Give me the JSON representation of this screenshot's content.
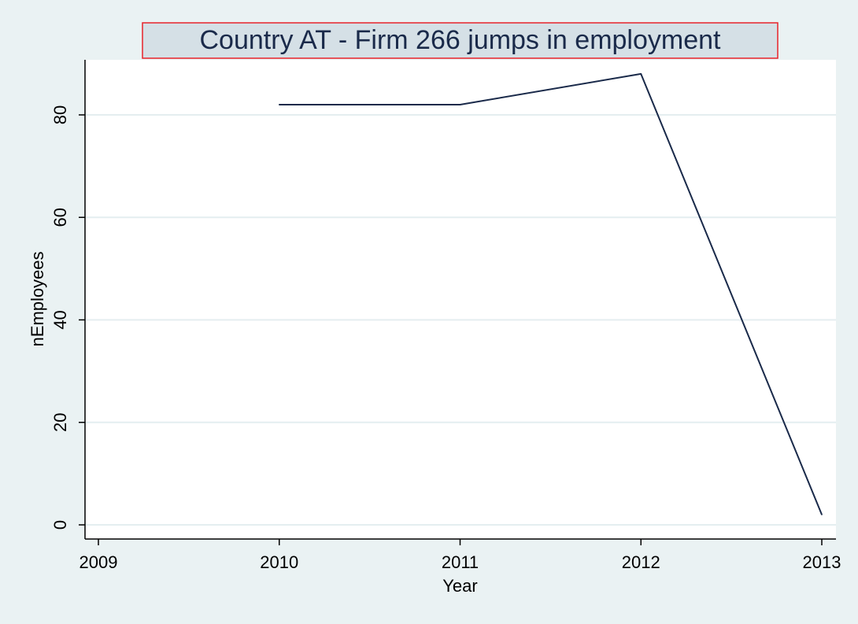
{
  "chart_data": {
    "type": "line",
    "title": "Country AT - Firm 266  jumps in employment",
    "xlabel": "Year",
    "ylabel": "nEmployees",
    "x_ticks": [
      2009,
      2010,
      2011,
      2012,
      2013
    ],
    "y_ticks": [
      0,
      20,
      40,
      60,
      80
    ],
    "xlim": [
      2009,
      2013
    ],
    "ylim": [
      0,
      88
    ],
    "grid": true,
    "series": [
      {
        "x": [
          2010,
          2011,
          2012,
          2013
        ],
        "values": [
          82,
          82,
          88,
          2
        ]
      }
    ]
  },
  "colors": {
    "background": "#eaf2f3",
    "plot_area": "#ffffff",
    "gridline": "#e4eef0",
    "line": "#1a2a4a",
    "title_box_fill": "#d5e0e6",
    "title_box_border": "#e8232a",
    "title_text": "#1a2a4a"
  }
}
